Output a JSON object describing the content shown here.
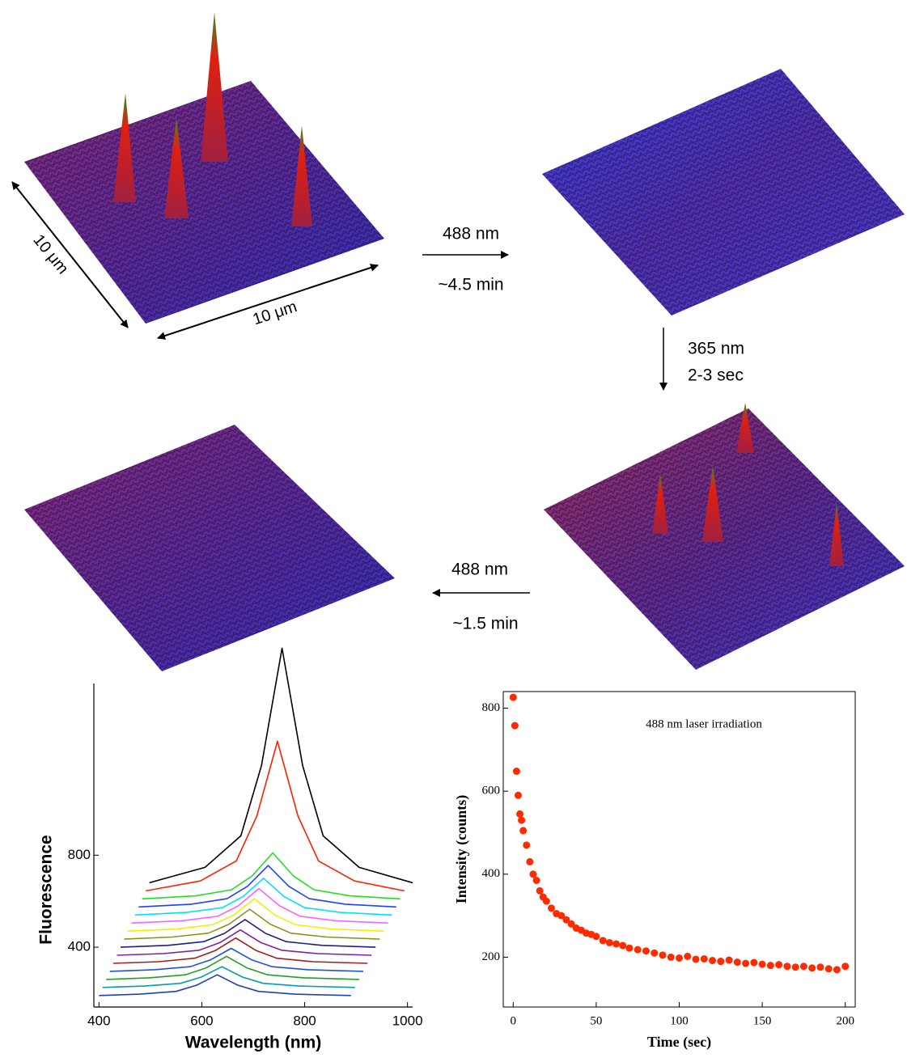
{
  "scheme": {
    "scale_labels": [
      "10 μm",
      "10 μm"
    ],
    "steps": [
      {
        "wavelength": "488 nm",
        "duration": "~4.5 min"
      },
      {
        "wavelength": "365 nm",
        "duration": "2-3 sec"
      },
      {
        "wavelength": "488 nm",
        "duration": "~1.5 min"
      }
    ]
  },
  "chart_data": [
    {
      "type": "line",
      "xlabel": "Wavelength (nm)",
      "ylabel": "Fluorescence",
      "xlim": [
        390,
        1010
      ],
      "ylim": [
        140,
        1740
      ],
      "xticks": [
        400,
        600,
        800,
        1000
      ],
      "yticks": [
        400,
        800
      ],
      "series": [
        {
          "color": "#2040c0",
          "x": [
            400,
            480,
            550,
            590,
            630,
            670,
            710,
            780,
            890
          ],
          "values": [
            190,
            196,
            208,
            235,
            280,
            235,
            208,
            196,
            190
          ]
        },
        {
          "color": "#00a0a0",
          "x": [
            407,
            489,
            559,
            599,
            639,
            679,
            719,
            789,
            898
          ],
          "values": [
            225,
            231,
            243,
            270,
            315,
            270,
            243,
            231,
            225
          ]
        },
        {
          "color": "#20a020",
          "x": [
            414,
            498,
            568,
            608,
            648,
            688,
            728,
            798,
            906
          ],
          "values": [
            260,
            267,
            280,
            310,
            360,
            310,
            280,
            267,
            260
          ]
        },
        {
          "color": "#2050e0",
          "x": [
            421,
            507,
            577,
            617,
            657,
            697,
            737,
            807,
            914
          ],
          "values": [
            295,
            302,
            315,
            345,
            395,
            345,
            315,
            302,
            295
          ]
        },
        {
          "color": "#a02020",
          "x": [
            428,
            516,
            586,
            626,
            666,
            706,
            746,
            816,
            922
          ],
          "values": [
            330,
            337,
            352,
            385,
            440,
            385,
            352,
            337,
            330
          ]
        },
        {
          "color": "#8020a0",
          "x": [
            435,
            525,
            595,
            635,
            675,
            715,
            755,
            825,
            930
          ],
          "values": [
            365,
            372,
            387,
            420,
            475,
            420,
            387,
            372,
            365
          ]
        },
        {
          "color": "#202080",
          "x": [
            442,
            534,
            604,
            644,
            684,
            724,
            764,
            834,
            938
          ],
          "values": [
            400,
            408,
            424,
            460,
            520,
            460,
            424,
            408,
            400
          ]
        },
        {
          "color": "#909020",
          "x": [
            449,
            543,
            613,
            653,
            693,
            733,
            773,
            843,
            946
          ],
          "values": [
            435,
            444,
            461,
            500,
            565,
            500,
            461,
            444,
            435
          ]
        },
        {
          "color": "#f0f000",
          "x": [
            456,
            552,
            622,
            662,
            702,
            742,
            782,
            852,
            954
          ],
          "values": [
            470,
            479,
            498,
            540,
            610,
            540,
            498,
            479,
            470
          ]
        },
        {
          "color": "#ff60ff",
          "x": [
            463,
            561,
            631,
            671,
            711,
            751,
            791,
            861,
            962
          ],
          "values": [
            505,
            515,
            535,
            580,
            655,
            580,
            535,
            515,
            505
          ]
        },
        {
          "color": "#00e0ff",
          "x": [
            470,
            570,
            640,
            680,
            720,
            760,
            800,
            870,
            970
          ],
          "values": [
            540,
            551,
            572,
            620,
            700,
            620,
            572,
            551,
            540
          ]
        },
        {
          "color": "#2040ff",
          "x": [
            477,
            579,
            649,
            689,
            729,
            769,
            809,
            879,
            978
          ],
          "values": [
            575,
            587,
            611,
            665,
            755,
            665,
            611,
            587,
            575
          ]
        },
        {
          "color": "#20e020",
          "x": [
            484,
            588,
            658,
            698,
            738,
            778,
            818,
            888,
            986
          ],
          "values": [
            610,
            623,
            650,
            710,
            810,
            710,
            650,
            623,
            610
          ]
        },
        {
          "color": "#ff2000",
          "x": [
            491,
            597,
            667,
            707,
            747,
            787,
            827,
            897,
            994
          ],
          "values": [
            645,
            688,
            775,
            970,
            1295,
            970,
            775,
            688,
            645
          ]
        },
        {
          "color": "#000000",
          "x": [
            498,
            606,
            676,
            716,
            756,
            796,
            836,
            906,
            1010
          ],
          "values": [
            680,
            747,
            884,
            1190,
            1700,
            1190,
            884,
            747,
            680
          ]
        }
      ]
    },
    {
      "type": "scatter",
      "xlabel": "Time (sec)",
      "ylabel": "Intensity (counts)",
      "annotation": "488 nm laser irradiation",
      "color": "#ff2a00",
      "xlim": [
        -6,
        206
      ],
      "ylim": [
        80,
        840
      ],
      "xticks": [
        0,
        50,
        100,
        150,
        200
      ],
      "yticks": [
        200,
        400,
        600,
        800
      ],
      "x": [
        0,
        1,
        2,
        3,
        4,
        5,
        6,
        8,
        10,
        12,
        14,
        16,
        18,
        20,
        23,
        26,
        29,
        32,
        35,
        38,
        41,
        44,
        47,
        50,
        54,
        58,
        62,
        66,
        70,
        75,
        80,
        85,
        90,
        95,
        100,
        105,
        110,
        115,
        120,
        125,
        130,
        135,
        140,
        145,
        150,
        155,
        160,
        165,
        170,
        175,
        180,
        185,
        190,
        195,
        200
      ],
      "values": [
        826,
        758,
        648,
        590,
        545,
        530,
        505,
        470,
        430,
        400,
        385,
        360,
        345,
        335,
        318,
        305,
        300,
        290,
        280,
        270,
        265,
        258,
        255,
        250,
        240,
        235,
        232,
        228,
        222,
        218,
        215,
        210,
        205,
        200,
        198,
        202,
        195,
        196,
        192,
        190,
        193,
        188,
        185,
        187,
        183,
        180,
        182,
        178,
        176,
        178,
        174,
        176,
        172,
        170,
        178
      ]
    }
  ]
}
